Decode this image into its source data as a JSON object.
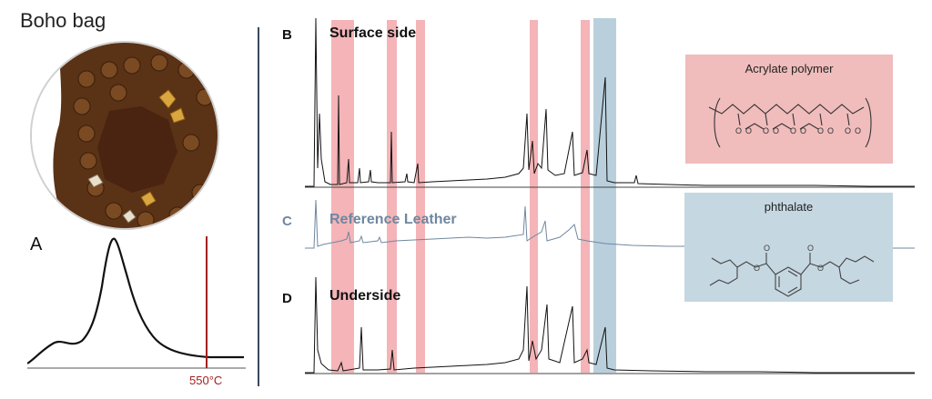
{
  "title": "Boho bag",
  "panels": {
    "a": "A",
    "b": "B",
    "c": "C",
    "d": "D"
  },
  "temperature_marker": "550°C",
  "traces": {
    "surface": "Surface side",
    "reference": "Reference Leather",
    "underside": "Underside"
  },
  "structures": {
    "acrylate": {
      "title": "Acrylate polymer",
      "color": "#f0bcbc"
    },
    "phthalate": {
      "title": "phthalate",
      "color": "#c5d7e1"
    }
  },
  "colors": {
    "highlight_red": "#f4b4b8",
    "highlight_blue": "#b9d0dc",
    "trace_black": "#111111",
    "trace_reference": "#6f87a0",
    "marker": "#a32020"
  }
}
